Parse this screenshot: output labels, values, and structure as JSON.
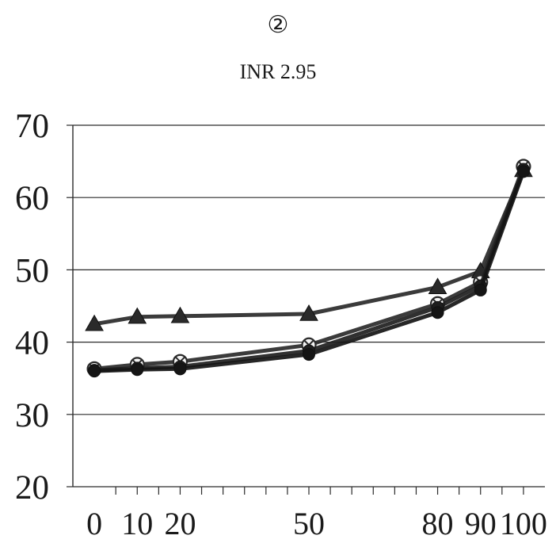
{
  "panel_marker": "②",
  "chart_data": {
    "type": "line",
    "title": "INR 2.95",
    "xlabel": "",
    "ylabel": "",
    "x": [
      0,
      10,
      20,
      50,
      80,
      90,
      100
    ],
    "x_tick_labels": [
      "0",
      "10",
      "20",
      "50",
      "80",
      "90",
      "100"
    ],
    "xlim": [
      -5,
      105
    ],
    "ylim": [
      20,
      70
    ],
    "y_ticks": [
      20,
      30,
      40,
      50,
      60,
      70
    ],
    "y_tick_labels": [
      "20",
      "30",
      "40",
      "50",
      "60",
      "70"
    ],
    "grid": "horizontal",
    "series": [
      {
        "values": [
          42.5,
          43.5,
          43.6,
          43.9,
          47.6,
          49.8,
          63.8
        ],
        "marker": "triangle",
        "color": "#2a2a2a"
      },
      {
        "values": [
          36.3,
          36.9,
          37.3,
          39.6,
          45.3,
          48.3,
          64.3
        ],
        "marker": "circle-x",
        "color": "#2a2a2a"
      },
      {
        "values": [
          36.1,
          36.4,
          36.6,
          38.8,
          44.8,
          47.8,
          63.9
        ],
        "marker": "circle",
        "color": "#1e1e1e"
      },
      {
        "values": [
          36.0,
          36.2,
          36.3,
          38.3,
          44.1,
          47.2,
          63.6
        ],
        "marker": "circle",
        "color": "#151515"
      }
    ]
  }
}
